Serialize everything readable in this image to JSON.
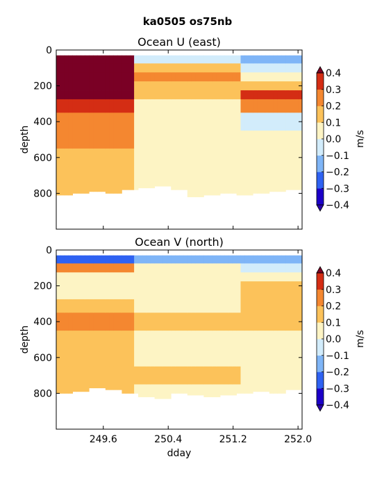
{
  "figure": {
    "suptitle": "ka0505 os75nb",
    "xlabel": "dday"
  },
  "colorbar": {
    "label": "m/s",
    "levels": [
      -0.4,
      -0.3,
      -0.2,
      -0.1,
      0.0,
      0.1,
      0.2,
      0.3,
      0.4
    ],
    "tick_labels": [
      "−0.4",
      "−0.3",
      "−0.2",
      "−0.1",
      "0.0",
      "0.1",
      "0.2",
      "0.3",
      "0.4"
    ],
    "colors": [
      "#1c00c8",
      "#2f62f2",
      "#7fb5f7",
      "#d2ecfb",
      "#fdf4c4",
      "#fcc25a",
      "#f48730",
      "#d42d14"
    ],
    "under_color": "#2a00b0",
    "over_color": "#7a0025"
  },
  "chart_data": [
    {
      "type": "heatmap",
      "title": "Ocean U (east)",
      "xlabel": "",
      "ylabel": "depth",
      "xlim": [
        249.02,
        252.05
      ],
      "ylim": [
        1000,
        0
      ],
      "x_ticks": [
        249.6,
        250.4,
        251.2,
        252.0
      ],
      "x_tick_labels": [
        "249.6",
        "250.4",
        "251.2",
        "252.0"
      ],
      "y_ticks": [
        0,
        200,
        400,
        600,
        800
      ],
      "y_tick_labels": [
        "0",
        "200",
        "400",
        "600",
        "800"
      ],
      "x": [
        249.1,
        249.3,
        249.5,
        249.7,
        249.9,
        250.1,
        250.3,
        250.5,
        250.7,
        250.9,
        251.1,
        251.3,
        251.5,
        251.7,
        251.9
      ],
      "depth_bins": [
        50,
        100,
        150,
        200,
        250,
        300,
        400,
        500,
        600,
        700,
        800
      ],
      "values": [
        [
          0.45,
          -0.05,
          -0.15
        ],
        [
          0.45,
          0.12,
          -0.1
        ],
        [
          0.45,
          0.25,
          0.02
        ],
        [
          0.45,
          0.18,
          0.15
        ],
        [
          0.45,
          0.12,
          0.35
        ],
        [
          0.3,
          0.05,
          0.25
        ],
        [
          0.25,
          0.0,
          -0.05
        ],
        [
          0.22,
          0.02,
          0.0
        ],
        [
          0.18,
          0.05,
          0.02
        ],
        [
          0.18,
          0.08,
          0.05
        ],
        [
          0.15,
          0.08,
          0.05
        ]
      ],
      "columns_note_order": "rows=depth_bins, cols=[249.1-250.0, 250.0-251.3, 251.3-252.0]",
      "max_depth": [
        810,
        800,
        790,
        800,
        780,
        770,
        760,
        780,
        820,
        810,
        800,
        810,
        800,
        790,
        780
      ]
    },
    {
      "type": "heatmap",
      "title": "Ocean V (north)",
      "xlabel": "dday",
      "ylabel": "depth",
      "xlim": [
        249.02,
        252.05
      ],
      "ylim": [
        1000,
        0
      ],
      "x_ticks": [
        249.6,
        250.4,
        251.2,
        252.0
      ],
      "x_tick_labels": [
        "249.6",
        "250.4",
        "251.2",
        "252.0"
      ],
      "y_ticks": [
        0,
        200,
        400,
        600,
        800
      ],
      "y_tick_labels": [
        "0",
        "200",
        "400",
        "600",
        "800"
      ],
      "depth_bins": [
        50,
        100,
        150,
        200,
        250,
        300,
        400,
        500,
        600,
        700,
        800
      ],
      "values": [
        [
          -0.25,
          -0.2,
          -0.2
        ],
        [
          0.25,
          0.05,
          -0.05
        ],
        [
          0.05,
          0.02,
          0.05
        ],
        [
          0.05,
          0.08,
          0.1
        ],
        [
          0.02,
          0.05,
          0.12
        ],
        [
          0.1,
          0.02,
          0.12
        ],
        [
          0.22,
          0.1,
          0.1
        ],
        [
          0.12,
          0.05,
          0.08
        ],
        [
          0.15,
          0.08,
          0.05
        ],
        [
          0.15,
          0.1,
          0.03
        ],
        [
          0.1,
          0.05,
          0.02
        ]
      ],
      "max_depth": [
        800,
        790,
        770,
        780,
        800,
        820,
        830,
        800,
        810,
        820,
        810,
        800,
        790,
        800,
        780
      ]
    }
  ]
}
